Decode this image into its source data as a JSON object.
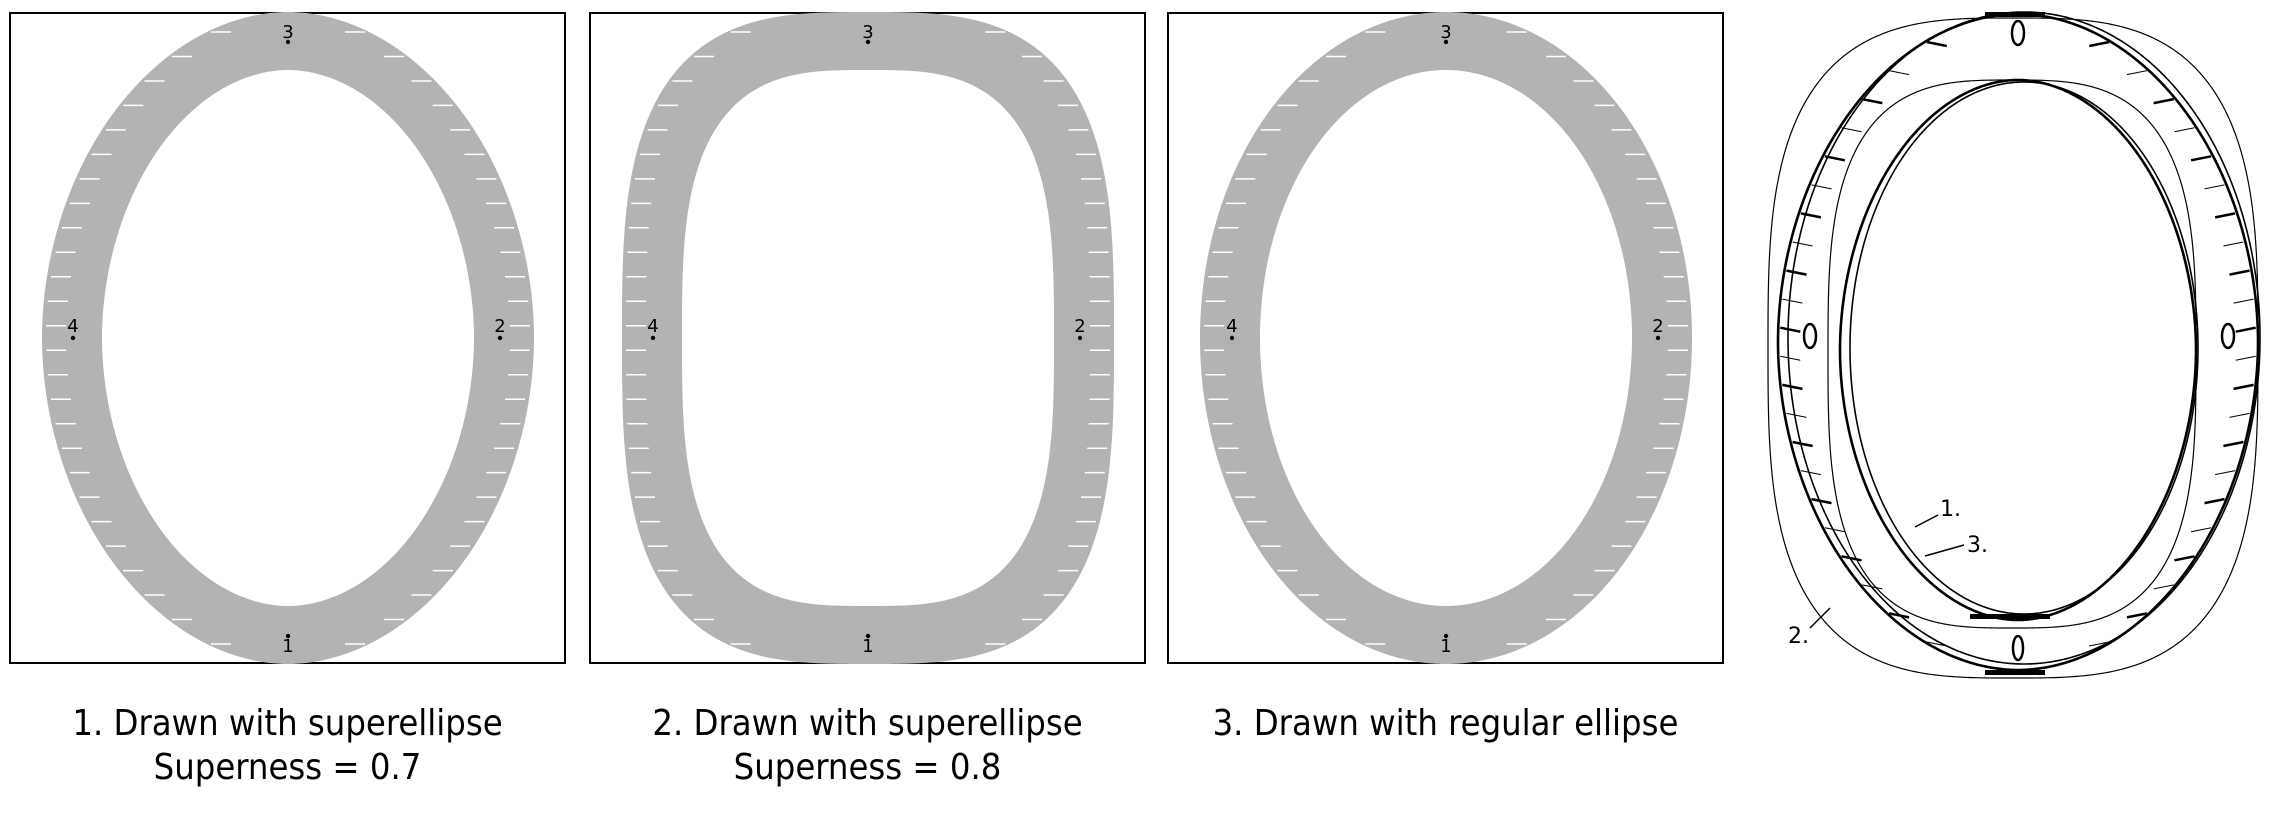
{
  "colors": {
    "ring_fill": "#b3b3b3",
    "frame_stroke": "#000000",
    "background": "#ffffff"
  },
  "panels": [
    {
      "id": "superellipse-07",
      "shape": "superellipse",
      "caption_line1": "1. Drawn with superellipse",
      "caption_line2": "Superness = 0.7",
      "superness": 0.7,
      "markers": [
        "1",
        "2",
        "3",
        "4"
      ]
    },
    {
      "id": "superellipse-08",
      "shape": "superellipse",
      "caption_line1": "2. Drawn with superellipse",
      "caption_line2": "Superness = 0.8",
      "superness": 0.8,
      "markers": [
        "1",
        "2",
        "3",
        "4"
      ]
    },
    {
      "id": "regular-ellipse",
      "shape": "ellipse",
      "caption_line1": "3. Drawn with regular ellipse",
      "caption_line2": "",
      "markers": [
        "1",
        "2",
        "3",
        "4"
      ]
    }
  ],
  "overlay": {
    "labels": {
      "one": "1.",
      "two": "2.",
      "three": "3."
    }
  }
}
